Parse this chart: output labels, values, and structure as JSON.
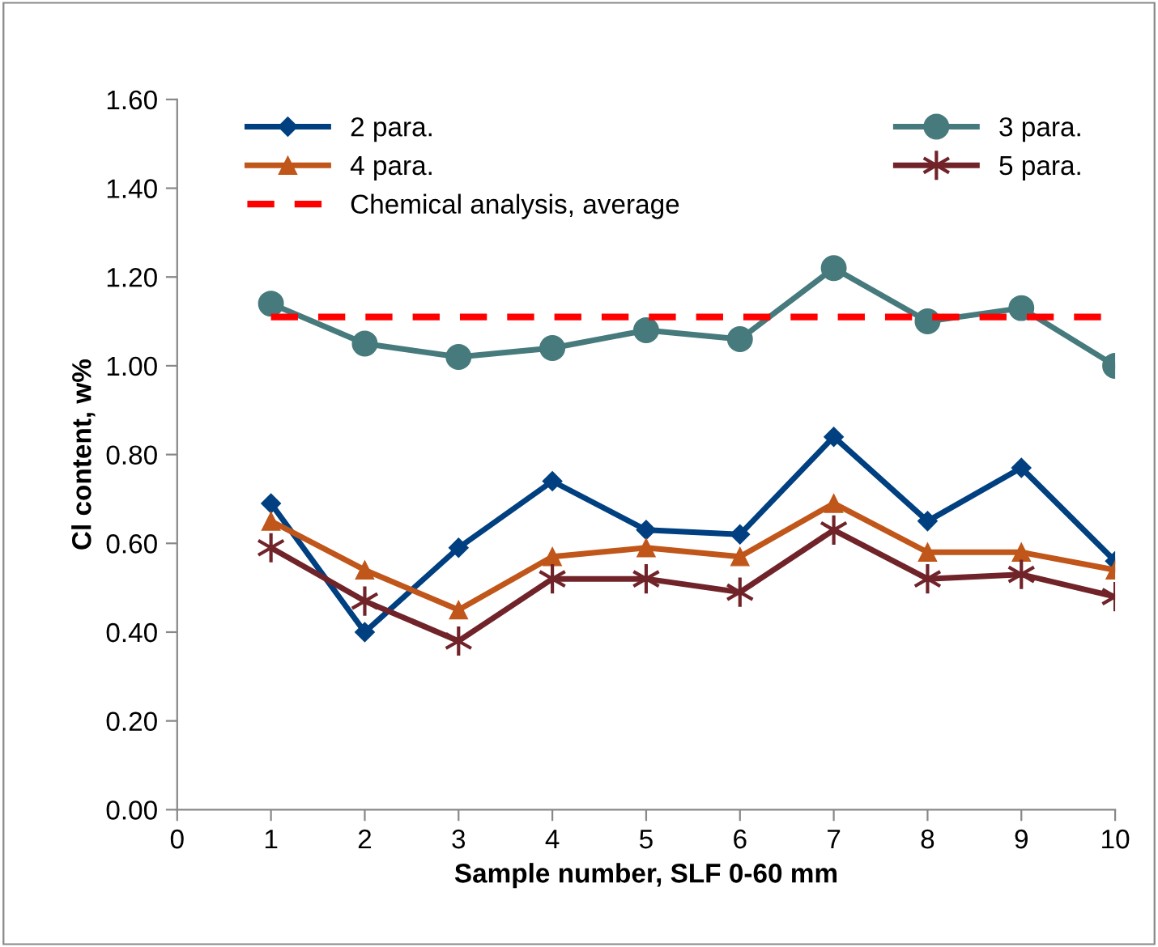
{
  "chart_data": {
    "type": "line",
    "xlabel": "Sample number, SLF 0-60 mm",
    "ylabel": "Cl content, w%",
    "x": [
      1,
      2,
      3,
      4,
      5,
      6,
      7,
      8,
      9,
      10
    ],
    "xlim": [
      0,
      10
    ],
    "xticks": [
      0,
      1,
      2,
      3,
      4,
      5,
      6,
      7,
      8,
      9,
      10
    ],
    "ylim": [
      0,
      1.6
    ],
    "yticks": [
      {
        "value": 0,
        "label": "0.00"
      },
      {
        "value": 0.2,
        "label": "0.20"
      },
      {
        "value": 0.4,
        "label": "0.40"
      },
      {
        "value": 0.6,
        "label": "0.60"
      },
      {
        "value": 0.8,
        "label": "0.80"
      },
      {
        "value": 1.0,
        "label": "1.00"
      },
      {
        "value": 1.2,
        "label": "1.20"
      },
      {
        "value": 1.4,
        "label": "1.40"
      },
      {
        "value": 1.6,
        "label": "1.60"
      }
    ],
    "grid": false,
    "legend": "top",
    "series": [
      {
        "name": "2 para.",
        "color": "#004080",
        "marker": "diamond",
        "line_style": "solid",
        "values": [
          0.69,
          0.4,
          0.59,
          0.74,
          0.63,
          0.62,
          0.84,
          0.65,
          0.77,
          0.56
        ]
      },
      {
        "name": "3 para.",
        "color": "#467a7c",
        "marker": "circle",
        "line_style": "solid",
        "values": [
          1.14,
          1.05,
          1.02,
          1.04,
          1.08,
          1.06,
          1.22,
          1.1,
          1.13,
          1.0
        ]
      },
      {
        "name": "4 para.",
        "color": "#c0561a",
        "marker": "triangle",
        "line_style": "solid",
        "values": [
          0.65,
          0.54,
          0.45,
          0.57,
          0.59,
          0.57,
          0.69,
          0.58,
          0.58,
          0.54
        ]
      },
      {
        "name": "5 para.",
        "color": "#70242a",
        "marker": "cross",
        "line_style": "solid",
        "values": [
          0.59,
          0.47,
          0.38,
          0.52,
          0.52,
          0.49,
          0.63,
          0.52,
          0.53,
          0.48
        ]
      },
      {
        "name": "Chemical analysis, average",
        "color": "#ff0000",
        "marker": "none",
        "line_style": "dashed",
        "values": [
          1.11,
          1.11,
          1.11,
          1.11,
          1.11,
          1.11,
          1.11,
          1.11,
          1.11,
          1.11
        ]
      }
    ]
  }
}
